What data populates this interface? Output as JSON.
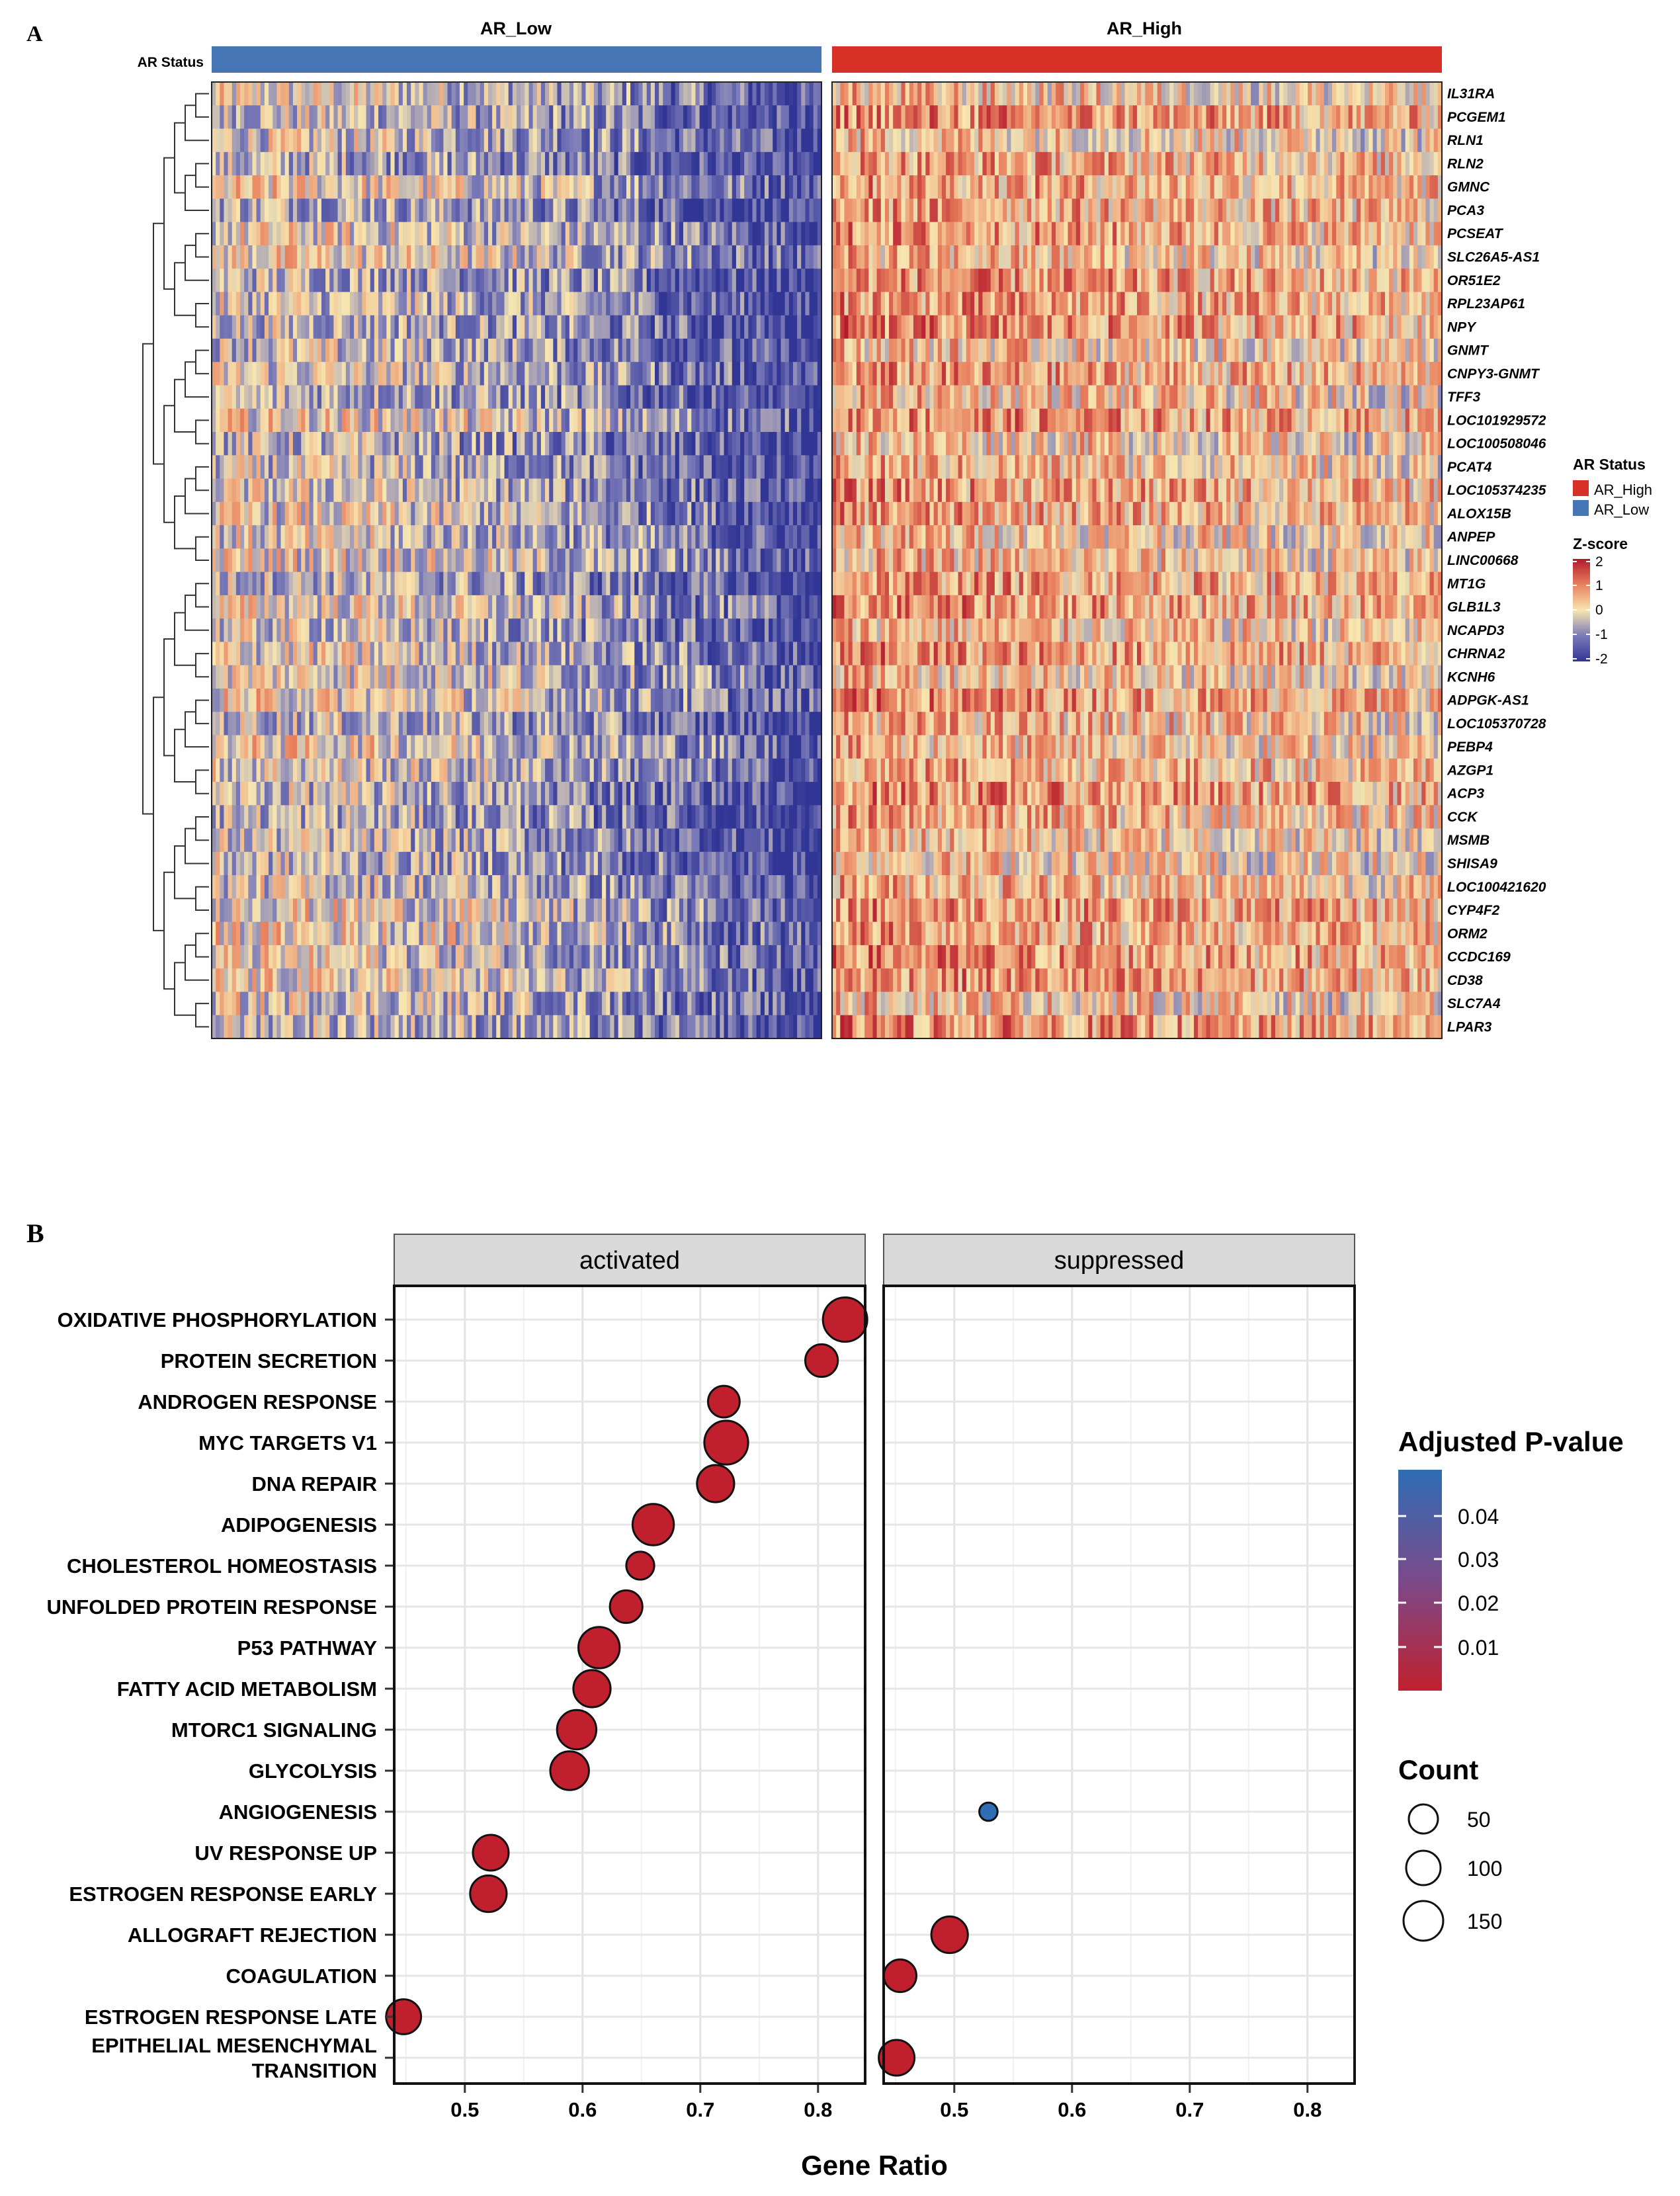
{
  "panel_a": {
    "label": "A",
    "groups": [
      "AR_Low",
      "AR_High"
    ],
    "annotation_label": "AR Status",
    "legend": {
      "status_title": "AR Status",
      "status_items": [
        {
          "name": "AR_High",
          "color": "#d73027"
        },
        {
          "name": "AR_Low",
          "color": "#4575b4"
        }
      ],
      "zscore_title": "Z-score",
      "zscore_ticks": [
        "2",
        "1",
        "0",
        "-1",
        "-2"
      ]
    }
  },
  "panel_b": {
    "label": "B",
    "facets": [
      "activated",
      "suppressed"
    ],
    "xlabel": "Gene Ratio",
    "xticks": [
      "0.5",
      "0.6",
      "0.7",
      "0.8"
    ],
    "legend": {
      "color_title": "Adjusted P-value",
      "color_ticks": [
        "0.04",
        "0.03",
        "0.02",
        "0.01"
      ],
      "size_title": "Count",
      "size_ticks": [
        "50",
        "100",
        "150"
      ]
    }
  },
  "colors": {
    "ar_high": "#d73027",
    "ar_low": "#4575b4",
    "heat_high": "#b2182b",
    "heat_mid": "#f7e6b0",
    "heat_low": "#313695",
    "dot_low_p": "#c0202e",
    "dot_high_p": "#2f6db5",
    "strip_fill": "#d9d9d9"
  },
  "chart_data": [
    {
      "type": "heatmap",
      "title": "",
      "columns_groups": [
        "AR_Low",
        "AR_High"
      ],
      "rows": [
        "IL31RA",
        "PCGEM1",
        "RLN1",
        "RLN2",
        "GMNC",
        "PCA3",
        "PCSEAT",
        "SLC26A5-AS1",
        "OR51E2",
        "RPL23AP61",
        "NPY",
        "GNMT",
        "CNPY3-GNMT",
        "TFF3",
        "LOC101929572",
        "LOC100508046",
        "PCAT4",
        "LOC105374235",
        "ALOX15B",
        "ANPEP",
        "LINC00668",
        "MT1G",
        "GLB1L3",
        "NCAPD3",
        "CHRNA2",
        "KCNH6",
        "ADPGK-AS1",
        "LOC105370728",
        "PEBP4",
        "AZGP1",
        "ACP3",
        "CCK",
        "MSMB",
        "SHISA9",
        "LOC100421620",
        "CYP4F2",
        "ORM2",
        "CCDC169",
        "CD38",
        "SLC7A4",
        "LPAR3"
      ],
      "value_range": [
        -2,
        2
      ],
      "legend_title": "Z-score"
    },
    {
      "type": "scatter",
      "xlabel": "Gene Ratio",
      "ylabel": "",
      "xlim": [
        0.44,
        0.84
      ],
      "facets": [
        "activated",
        "suppressed"
      ],
      "categories": [
        "OXIDATIVE PHOSPHORYLATION",
        "PROTEIN SECRETION",
        "ANDROGEN RESPONSE",
        "MYC TARGETS V1",
        "DNA REPAIR",
        "ADIPOGENESIS",
        "CHOLESTEROL HOMEOSTASIS",
        "UNFOLDED PROTEIN RESPONSE",
        "P53 PATHWAY",
        "FATTY ACID METABOLISM",
        "MTORC1 SIGNALING",
        "GLYCOLYSIS",
        "ANGIOGENESIS",
        "UV RESPONSE UP",
        "ESTROGEN RESPONSE EARLY",
        "ALLOGRAFT REJECTION",
        "COAGULATION",
        "ESTROGEN RESPONSE LATE",
        "EPITHELIAL MESENCHYMAL TRANSITION"
      ],
      "points": [
        {
          "category": "OXIDATIVE PHOSPHORYLATION",
          "facet": "activated",
          "x": 0.823,
          "count": 165,
          "padj": 0.001
        },
        {
          "category": "PROTEIN SECRETION",
          "facet": "activated",
          "x": 0.803,
          "count": 80,
          "padj": 0.001
        },
        {
          "category": "ANDROGEN RESPONSE",
          "facet": "activated",
          "x": 0.72,
          "count": 75,
          "padj": 0.001
        },
        {
          "category": "MYC TARGETS V1",
          "facet": "activated",
          "x": 0.722,
          "count": 160,
          "padj": 0.001
        },
        {
          "category": "DNA REPAIR",
          "facet": "activated",
          "x": 0.713,
          "count": 110,
          "padj": 0.001
        },
        {
          "category": "ADIPOGENESIS",
          "facet": "activated",
          "x": 0.66,
          "count": 140,
          "padj": 0.001
        },
        {
          "category": "CHOLESTEROL HOMEOSTASIS",
          "facet": "activated",
          "x": 0.649,
          "count": 55,
          "padj": 0.001
        },
        {
          "category": "UNFOLDED PROTEIN RESPONSE",
          "facet": "activated",
          "x": 0.637,
          "count": 80,
          "padj": 0.001
        },
        {
          "category": "P53 PATHWAY",
          "facet": "activated",
          "x": 0.614,
          "count": 140,
          "padj": 0.001
        },
        {
          "category": "FATTY ACID METABOLISM",
          "facet": "activated",
          "x": 0.608,
          "count": 110,
          "padj": 0.001
        },
        {
          "category": "MTORC1 SIGNALING",
          "facet": "activated",
          "x": 0.595,
          "count": 125,
          "padj": 0.001
        },
        {
          "category": "GLYCOLYSIS",
          "facet": "activated",
          "x": 0.589,
          "count": 120,
          "padj": 0.001
        },
        {
          "category": "ANGIOGENESIS",
          "facet": "suppressed",
          "x": 0.529,
          "count": 18,
          "padj": 0.048
        },
        {
          "category": "UV RESPONSE UP",
          "facet": "activated",
          "x": 0.522,
          "count": 100,
          "padj": 0.001
        },
        {
          "category": "ESTROGEN RESPONSE EARLY",
          "facet": "activated",
          "x": 0.52,
          "count": 105,
          "padj": 0.001
        },
        {
          "category": "ALLOGRAFT REJECTION",
          "facet": "suppressed",
          "x": 0.496,
          "count": 105,
          "padj": 0.001
        },
        {
          "category": "COAGULATION",
          "facet": "suppressed",
          "x": 0.454,
          "count": 80,
          "padj": 0.001
        },
        {
          "category": "ESTROGEN RESPONSE LATE",
          "facet": "activated",
          "x": 0.448,
          "count": 95,
          "padj": 0.001
        },
        {
          "category": "EPITHELIAL MESENCHYMAL TRANSITION",
          "facet": "suppressed",
          "x": 0.451,
          "count": 100,
          "padj": 0.001
        }
      ],
      "legend_color_title": "Adjusted P-value",
      "legend_size_title": "Count"
    }
  ]
}
